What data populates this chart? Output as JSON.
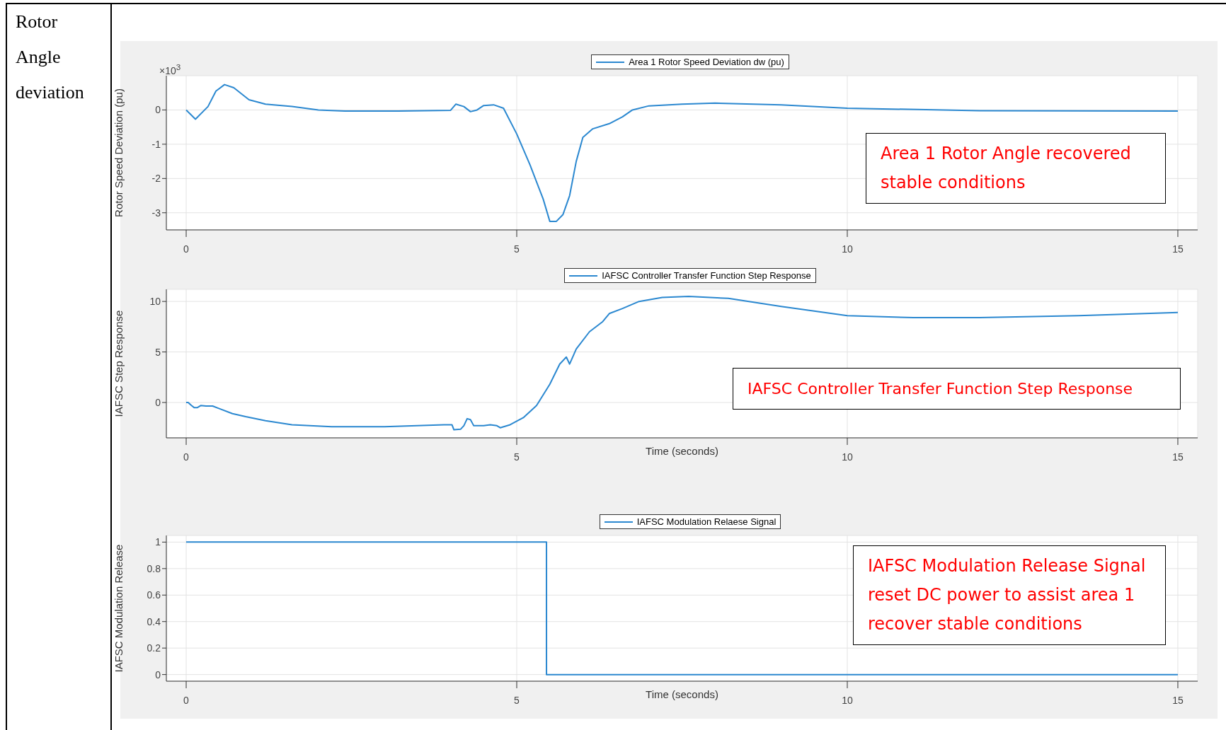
{
  "chart_data": [
    {
      "type": "line",
      "title": "Rotor Angle deviation",
      "ylabel": "Rotor Speed Deviation (pu)",
      "annotations": [
        "×10$^{3}$",
        "Area 1 Rotor Angle recovered stable conditions"
      ],
      "legend": "top",
      "grid": true,
      "xlim": [
        -0.3,
        15.3
      ],
      "xticks": [
        0,
        5,
        10,
        15
      ],
      "ylim": [
        -3.5,
        1
      ],
      "yticks": [
        -3,
        -2,
        -1,
        0
      ],
      "series": [
        {
          "name": "Area 1 Rotor Speed Deviation dw (pu)",
          "color": "#2b88d0",
          "x": [
            0,
            0.14,
            0.33,
            0.45,
            0.58,
            0.72,
            0.95,
            1.2,
            1.6,
            2.0,
            2.4,
            3.2,
            4.0,
            4.08,
            4.2,
            4.3,
            4.4,
            4.5,
            4.65,
            4.8,
            5.0,
            5.2,
            5.4,
            5.5,
            5.6,
            5.7,
            5.8,
            5.9,
            6.0,
            6.15,
            6.4,
            6.6,
            6.75,
            7.0,
            7.5,
            8.0,
            9,
            10,
            12,
            15
          ],
          "values": [
            0,
            -0.27,
            0.1,
            0.55,
            0.74,
            0.65,
            0.3,
            0.17,
            0.1,
            0,
            -0.03,
            -0.03,
            -0.01,
            0.17,
            0.1,
            -0.05,
            0,
            0.13,
            0.15,
            0.05,
            -0.7,
            -1.6,
            -2.6,
            -3.25,
            -3.25,
            -3.05,
            -2.5,
            -1.5,
            -0.8,
            -0.55,
            -0.4,
            -0.2,
            0,
            0.12,
            0.17,
            0.2,
            0.15,
            0.05,
            -0.02,
            -0.03
          ]
        }
      ]
    },
    {
      "type": "line",
      "xlabel": "Time (seconds)",
      "ylabel": "IAFSC Step Response",
      "annotations": [
        "IAFSC Controller Transfer Function Step Response"
      ],
      "legend": "top",
      "grid": true,
      "xlim": [
        -0.3,
        15.3
      ],
      "xticks": [
        0,
        5,
        10,
        15
      ],
      "ylim": [
        -3.5,
        11.2
      ],
      "yticks": [
        0,
        5,
        10
      ],
      "series": [
        {
          "name": "IAFSC Controller Transfer Function Step Response",
          "color": "#2b88d0",
          "x": [
            0,
            0.03,
            0.08,
            0.12,
            0.17,
            0.22,
            0.3,
            0.4,
            0.5,
            0.7,
            0.9,
            1.2,
            1.6,
            2.2,
            3,
            3.9,
            4.02,
            4.05,
            4.15,
            4.2,
            4.25,
            4.3,
            4.35,
            4.5,
            4.6,
            4.7,
            4.75,
            4.9,
            5.1,
            5.3,
            5.5,
            5.65,
            5.75,
            5.8,
            5.9,
            6.1,
            6.3,
            6.4,
            6.6,
            6.85,
            7.2,
            7.6,
            8.2,
            9,
            10,
            11,
            12,
            13.5,
            15
          ],
          "values": [
            0,
            0,
            -0.3,
            -0.5,
            -0.5,
            -0.3,
            -0.35,
            -0.35,
            -0.6,
            -1.1,
            -1.4,
            -1.8,
            -2.2,
            -2.4,
            -2.4,
            -2.2,
            -2.2,
            -2.7,
            -2.65,
            -2.3,
            -1.6,
            -1.7,
            -2.3,
            -2.3,
            -2.2,
            -2.3,
            -2.5,
            -2.2,
            -1.5,
            -0.3,
            1.8,
            3.8,
            4.5,
            3.8,
            5.3,
            7,
            8,
            8.8,
            9.3,
            10,
            10.4,
            10.5,
            10.3,
            9.5,
            8.6,
            8.4,
            8.4,
            8.6,
            8.9
          ]
        }
      ]
    },
    {
      "type": "step",
      "xlabel": "Time (seconds)",
      "ylabel": "IAFSC Modulation Release",
      "annotations": [
        "IAFSC Modulation Release Signal reset DC power to assist area 1 recover stable conditions"
      ],
      "legend": "top",
      "grid": true,
      "xlim": [
        -0.3,
        15.3
      ],
      "xticks": [
        0,
        5,
        10,
        15
      ],
      "ylim": [
        -0.05,
        1.05
      ],
      "yticks": [
        0,
        0.2,
        0.4,
        0.6,
        0.8,
        1
      ],
      "series": [
        {
          "name": "IAFSC Modulation Relaese Signal",
          "color": "#2b88d0",
          "x": [
            0,
            5.45,
            15
          ],
          "values": [
            1,
            0,
            0
          ]
        }
      ]
    }
  ]
}
